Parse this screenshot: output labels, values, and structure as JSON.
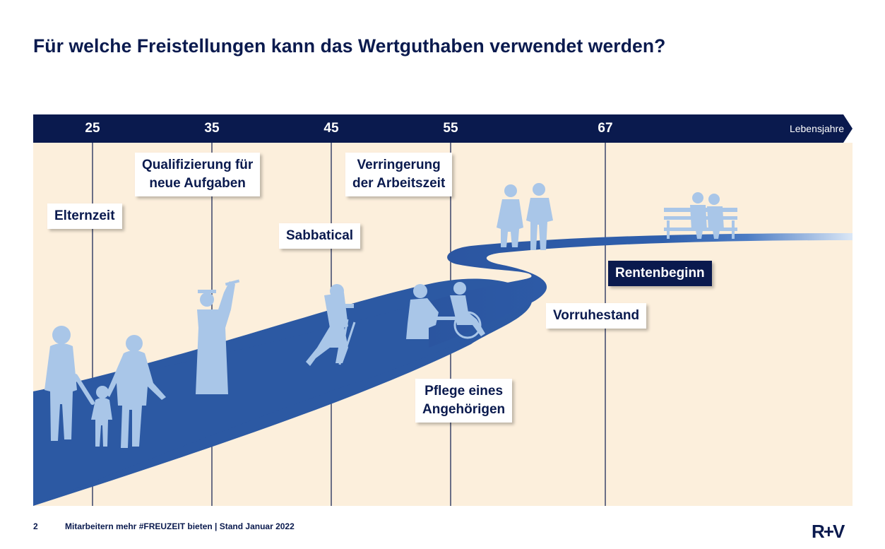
{
  "title": "Für welche Freistellungen kann das Wertguthaben verwendet werden?",
  "axis": {
    "ages": [
      "25",
      "35",
      "45",
      "55",
      "67"
    ],
    "unit": "Lebensjahre"
  },
  "labels": {
    "elternzeit": "Elternzeit",
    "qualifizierung_line1": "Qualifizierung für",
    "qualifizierung_line2": "neue Aufgaben",
    "sabbatical": "Sabbatical",
    "verringerung_line1": "Verringerung",
    "verringerung_line2": "der Arbeitszeit",
    "pflege_line1": "Pflege eines",
    "pflege_line2": "Angehörigen",
    "vorruhestand": "Vorruhestand",
    "rentenbeginn": "Rentenbeginn"
  },
  "footer": {
    "page_number": "2",
    "text": "Mitarbeitern mehr #FREUZEIT bieten | Stand Januar 2022",
    "logo": "R+V"
  },
  "colors": {
    "navy": "#0a1a4e",
    "background": "#fcefdc",
    "road": "#2a56a0",
    "silhouette": "#a9c6e8"
  },
  "icons": [
    "family-icon",
    "graduate-icon",
    "hiker-icon",
    "caregiver-wheelchair-icon",
    "elderly-couple-icon",
    "bench-couple-icon"
  ]
}
